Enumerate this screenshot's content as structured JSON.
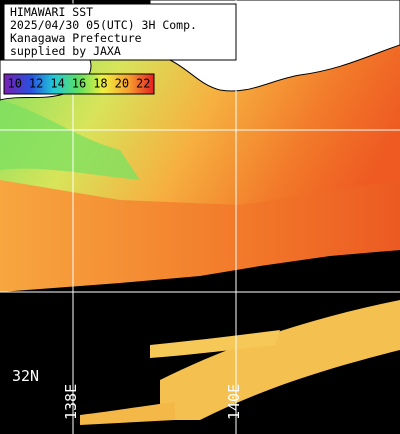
{
  "title_box": {
    "lines": [
      "HIMAWARI SST",
      "2025/04/30 05(UTC) 3H Comp.",
      "Kanagawa Prefecture",
      "supplied by JAXA"
    ]
  },
  "colorbar": {
    "labels": [
      10,
      12,
      14,
      16,
      18,
      20,
      22
    ]
  },
  "map_labels": {
    "latitude": "32N",
    "longitudes": [
      "138E",
      "140E"
    ]
  }
}
